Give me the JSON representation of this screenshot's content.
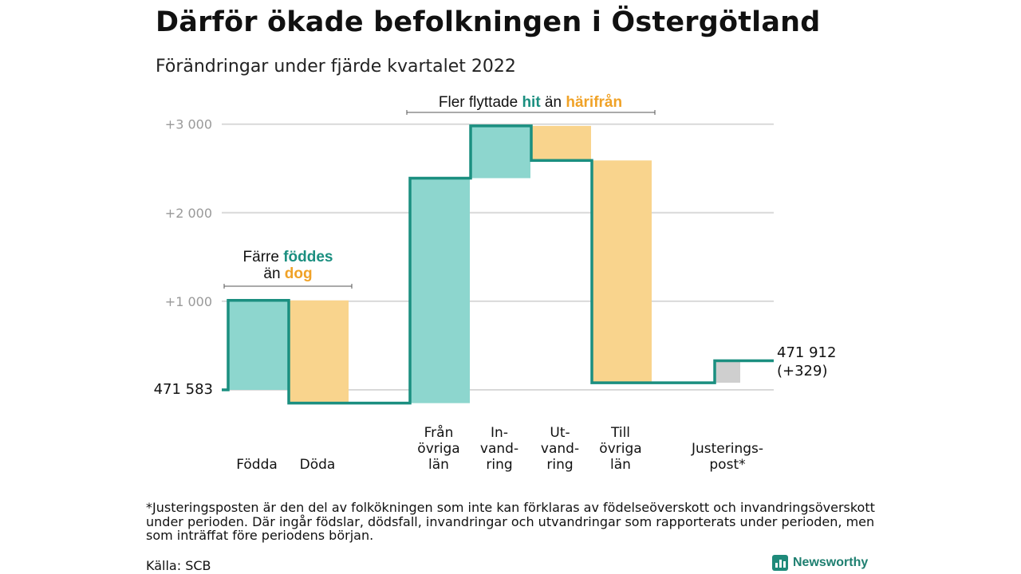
{
  "title": "Därför ökade befolkningen i Östergötland",
  "subtitle": "Förändringar under fjärde kvartalet 2022",
  "colors": {
    "increase": "#8dd6ce",
    "decrease": "#f9d48d",
    "adjustment": "#cfcfcf",
    "line": "#1b8f80",
    "hit": "#1b8f80",
    "harifran": "#f0a227",
    "grid": "#d9d9d9",
    "tick": "#999999"
  },
  "chart_data": {
    "type": "waterfall",
    "start_label": "471 583",
    "end_label_value": "471 912",
    "end_label_change": "(+329)",
    "y_ticks": [
      {
        "value": 1000,
        "label": "+1 000"
      },
      {
        "value": 2000,
        "label": "+2 000"
      },
      {
        "value": 3000,
        "label": "+3 000"
      }
    ],
    "ylim": [
      0,
      3000
    ],
    "grid": true,
    "steps": [
      {
        "lines": [
          "Födda"
        ],
        "from": 0,
        "to": 1010,
        "kind": "increase"
      },
      {
        "lines": [
          "Döda"
        ],
        "from": 1010,
        "to": -150,
        "kind": "decrease"
      },
      {
        "lines": [
          "Från",
          "övriga",
          "län"
        ],
        "from": -150,
        "to": 2390,
        "kind": "increase"
      },
      {
        "lines": [
          "In-",
          "vand-",
          "ring"
        ],
        "from": 2390,
        "to": 2980,
        "kind": "increase"
      },
      {
        "lines": [
          "Ut-",
          "vand-",
          "ring"
        ],
        "from": 2980,
        "to": 2590,
        "kind": "decrease"
      },
      {
        "lines": [
          "Till",
          "övriga",
          "län"
        ],
        "from": 2590,
        "to": 80,
        "kind": "decrease"
      },
      {
        "lines": [
          "Justerings-",
          "post*"
        ],
        "from": 80,
        "to": 329,
        "kind": "adjustment"
      }
    ],
    "annotations": [
      {
        "lines": [
          [
            {
              "t": "Färre "
            },
            {
              "t": "föddes",
              "c": "hit"
            }
          ],
          [
            {
              "t": "än "
            },
            {
              "t": "dog",
              "c": "harifran"
            }
          ]
        ]
      },
      {
        "lines": [
          [
            {
              "t": "Fler flyttade "
            },
            {
              "t": "hit",
              "c": "hit"
            },
            {
              "t": " än "
            },
            {
              "t": "härifrån",
              "c": "harifran"
            }
          ]
        ]
      }
    ]
  },
  "footnote": "*Justeringsposten är den del av folkökningen som inte kan förklaras av födelseöverskott och invandringsöverskott under perioden. Där ingår födslar, dödsfall, invandringar och utvandringar som rapporterats under perioden, men som inträffat före periodens början.",
  "source": "Källa: SCB",
  "logo_text": "Newsworthy",
  "logo_icon": "bar-chart-icon"
}
